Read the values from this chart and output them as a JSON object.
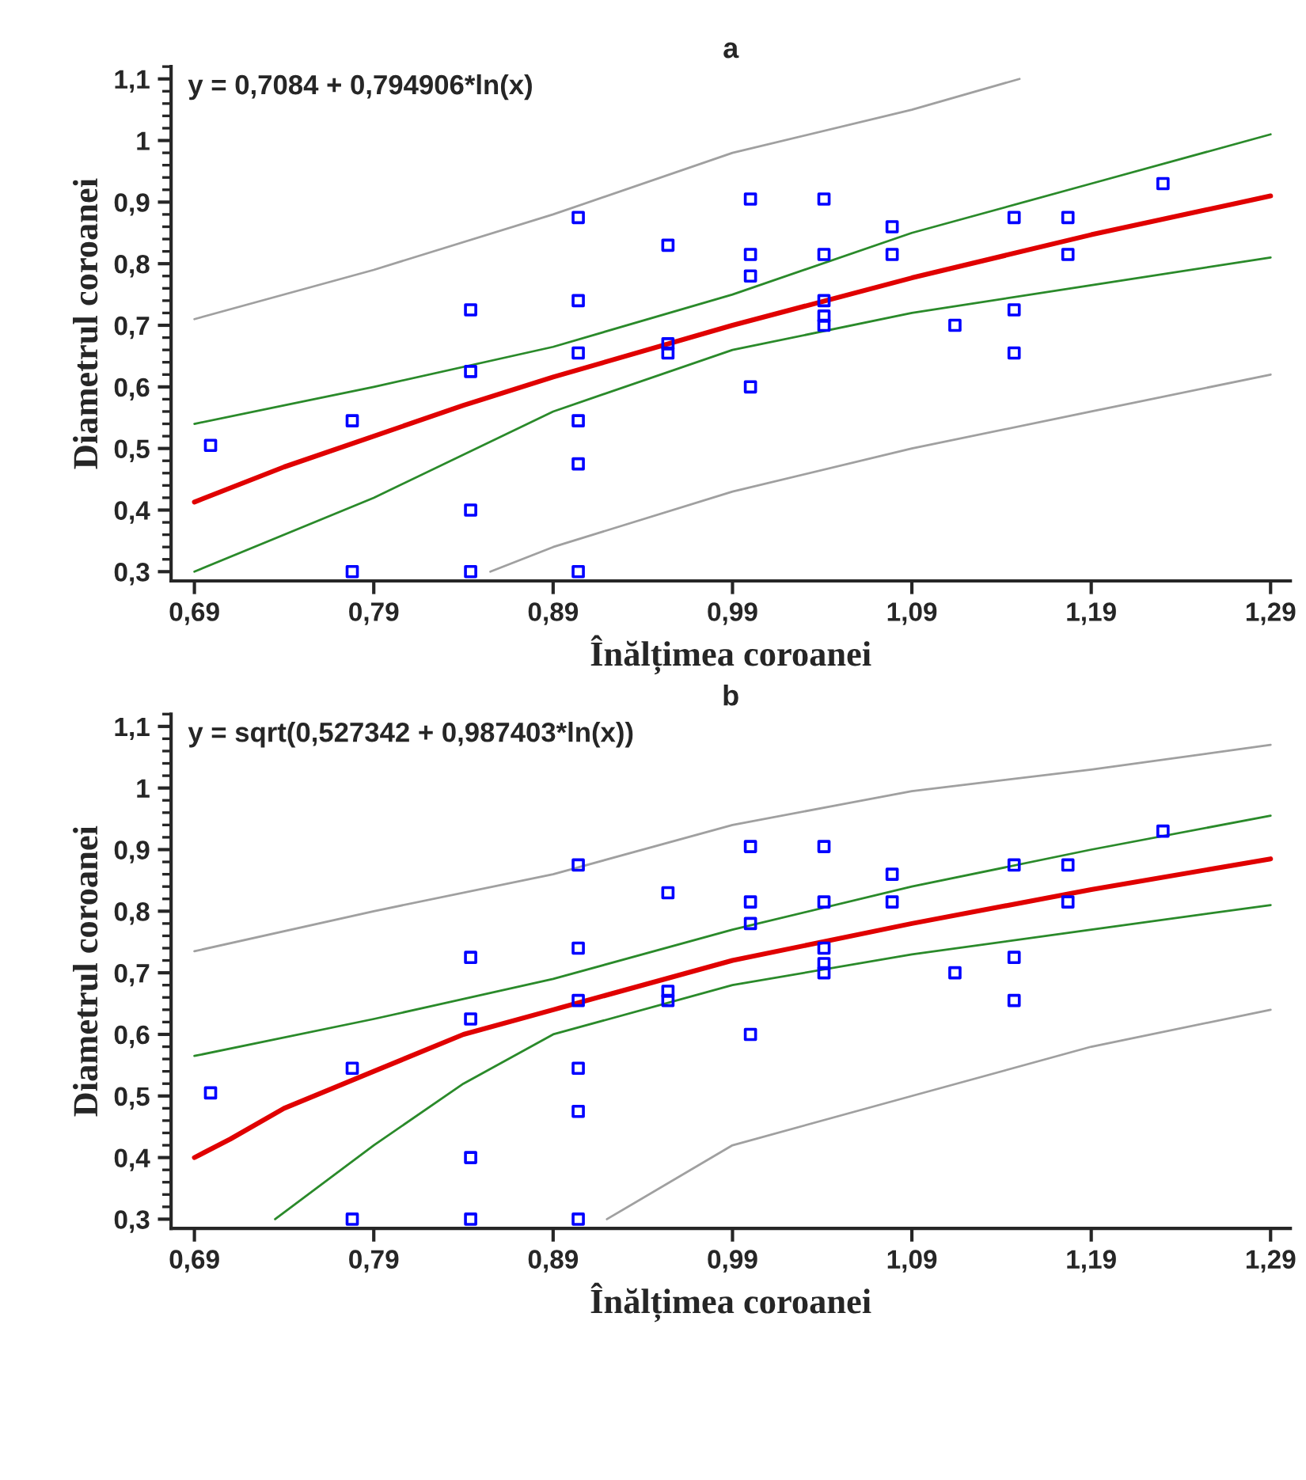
{
  "chart_data": [
    {
      "type": "scatter",
      "title": "a",
      "xlabel": "Înălțimea coroanei",
      "ylabel": "Diametrul coroanei",
      "annotations": [
        "y = 0,7084 + 0,794906*ln(x)"
      ],
      "xlim": [
        0.677,
        1.301
      ],
      "ylim": [
        0.285,
        1.12
      ],
      "xticks": [
        {
          "value": 0.69,
          "label": "0,69"
        },
        {
          "value": 0.79,
          "label": "0,79"
        },
        {
          "value": 0.89,
          "label": "0,89"
        },
        {
          "value": 0.99,
          "label": "0,99"
        },
        {
          "value": 1.09,
          "label": "1,09"
        },
        {
          "value": 1.19,
          "label": "1,19"
        },
        {
          "value": 1.29,
          "label": "1,29"
        }
      ],
      "yticks": [
        {
          "value": 0.3,
          "label": "0,3"
        },
        {
          "value": 0.4,
          "label": "0,4"
        },
        {
          "value": 0.5,
          "label": "0,5"
        },
        {
          "value": 0.6,
          "label": "0,6"
        },
        {
          "value": 0.7,
          "label": "0,7"
        },
        {
          "value": 0.8,
          "label": "0,8"
        },
        {
          "value": 0.9,
          "label": "0,9"
        },
        1,
        {
          "value": 1.1,
          "label": "1,1"
        }
      ],
      "grid": false,
      "legend": false,
      "series": [
        {
          "type": "line",
          "color": "#a0a0a0",
          "x": [
            0.69,
            0.79,
            0.89,
            0.99,
            1.09,
            1.15
          ],
          "values": [
            0.71,
            0.79,
            0.88,
            0.98,
            1.05,
            1.1
          ]
        },
        {
          "type": "line",
          "color": "#a0a0a0",
          "x": [
            0.855,
            0.89,
            0.99,
            1.09,
            1.19,
            1.29
          ],
          "values": [
            0.3,
            0.34,
            0.43,
            0.5,
            0.56,
            0.62
          ]
        },
        {
          "type": "line",
          "color": "#2a8a2a",
          "x": [
            0.69,
            0.79,
            0.89,
            0.99,
            1.09,
            1.19,
            1.29
          ],
          "values": [
            0.54,
            0.6,
            0.665,
            0.75,
            0.85,
            0.93,
            1.01
          ]
        },
        {
          "type": "line",
          "color": "#2a8a2a",
          "x": [
            0.69,
            0.79,
            0.89,
            0.99,
            1.09,
            1.19,
            1.29
          ],
          "values": [
            0.3,
            0.42,
            0.56,
            0.66,
            0.72,
            0.765,
            0.81
          ]
        },
        {
          "type": "line",
          "color": "#e00000",
          "x": [
            0.69,
            0.74,
            0.79,
            0.84,
            0.89,
            0.99,
            1.09,
            1.19,
            1.29
          ],
          "values": [
            0.413,
            0.47,
            0.52,
            0.57,
            0.616,
            0.7,
            0.777,
            0.847,
            0.91
          ]
        },
        {
          "color": "#0000ff",
          "marker": "square",
          "x": [
            0.699,
            0.778,
            0.778,
            0.844,
            0.844,
            0.844,
            0.844,
            0.904,
            0.904,
            0.904,
            0.904,
            0.904,
            0.904,
            0.954,
            0.954,
            0.954,
            1.0,
            1.0,
            1.0,
            1.0,
            1.041,
            1.041,
            1.041,
            1.041,
            1.041,
            1.079,
            1.079,
            1.114,
            1.147,
            1.147,
            1.147,
            1.177,
            1.177,
            1.23
          ],
          "values": [
            0.505,
            0.545,
            0.3,
            0.725,
            0.625,
            0.4,
            0.3,
            0.875,
            0.74,
            0.655,
            0.545,
            0.475,
            0.3,
            0.83,
            0.67,
            0.655,
            0.905,
            0.815,
            0.78,
            0.6,
            0.905,
            0.815,
            0.74,
            0.715,
            0.7,
            0.86,
            0.815,
            0.7,
            0.875,
            0.725,
            0.655,
            0.875,
            0.815,
            0.93
          ]
        }
      ]
    },
    {
      "type": "scatter",
      "title": "b",
      "xlabel": "Înălțimea coroanei",
      "ylabel": "Diametrul coroanei",
      "annotations": [
        "y = sqrt(0,527342 + 0,987403*ln(x))"
      ],
      "xlim": [
        0.677,
        1.301
      ],
      "ylim": [
        0.285,
        1.12
      ],
      "xticks": [
        {
          "value": 0.69,
          "label": "0,69"
        },
        {
          "value": 0.79,
          "label": "0,79"
        },
        {
          "value": 0.89,
          "label": "0,89"
        },
        {
          "value": 0.99,
          "label": "0,99"
        },
        {
          "value": 1.09,
          "label": "1,09"
        },
        {
          "value": 1.19,
          "label": "1,19"
        },
        {
          "value": 1.29,
          "label": "1,29"
        }
      ],
      "yticks": [
        {
          "value": 0.3,
          "label": "0,3"
        },
        {
          "value": 0.4,
          "label": "0,4"
        },
        {
          "value": 0.5,
          "label": "0,5"
        },
        {
          "value": 0.6,
          "label": "0,6"
        },
        {
          "value": 0.7,
          "label": "0,7"
        },
        {
          "value": 0.8,
          "label": "0,8"
        },
        {
          "value": 0.9,
          "label": "0,9"
        },
        1,
        {
          "value": 1.1,
          "label": "1,1"
        }
      ],
      "grid": false,
      "legend": false,
      "series": [
        {
          "type": "line",
          "color": "#a0a0a0",
          "x": [
            0.69,
            0.79,
            0.89,
            0.99,
            1.09,
            1.19,
            1.29
          ],
          "values": [
            0.735,
            0.8,
            0.86,
            0.94,
            0.995,
            1.03,
            1.07
          ]
        },
        {
          "type": "line",
          "color": "#a0a0a0",
          "x": [
            0.92,
            0.99,
            1.09,
            1.19,
            1.29
          ],
          "values": [
            0.3,
            0.42,
            0.5,
            0.58,
            0.64
          ]
        },
        {
          "type": "line",
          "color": "#2a8a2a",
          "x": [
            0.69,
            0.79,
            0.89,
            0.99,
            1.09,
            1.19,
            1.29
          ],
          "values": [
            0.565,
            0.625,
            0.69,
            0.77,
            0.84,
            0.9,
            0.955
          ]
        },
        {
          "type": "line",
          "color": "#2a8a2a",
          "x": [
            0.735,
            0.79,
            0.84,
            0.89,
            0.99,
            1.09,
            1.19,
            1.29
          ],
          "values": [
            0.3,
            0.42,
            0.52,
            0.6,
            0.68,
            0.73,
            0.77,
            0.81
          ]
        },
        {
          "type": "line",
          "color": "#e00000",
          "x": [
            0.69,
            0.71,
            0.74,
            0.79,
            0.84,
            0.89,
            0.99,
            1.09,
            1.19,
            1.29
          ],
          "values": [
            0.4,
            0.43,
            0.48,
            0.54,
            0.6,
            0.64,
            0.72,
            0.78,
            0.835,
            0.885
          ]
        },
        {
          "color": "#0000ff",
          "marker": "square",
          "x": [
            0.699,
            0.778,
            0.778,
            0.844,
            0.844,
            0.844,
            0.844,
            0.904,
            0.904,
            0.904,
            0.904,
            0.904,
            0.904,
            0.954,
            0.954,
            0.954,
            1.0,
            1.0,
            1.0,
            1.0,
            1.041,
            1.041,
            1.041,
            1.041,
            1.041,
            1.079,
            1.079,
            1.114,
            1.147,
            1.147,
            1.147,
            1.177,
            1.177,
            1.23
          ],
          "values": [
            0.505,
            0.545,
            0.3,
            0.725,
            0.625,
            0.4,
            0.3,
            0.875,
            0.74,
            0.655,
            0.545,
            0.475,
            0.3,
            0.83,
            0.67,
            0.655,
            0.905,
            0.815,
            0.78,
            0.6,
            0.905,
            0.815,
            0.74,
            0.715,
            0.7,
            0.86,
            0.815,
            0.7,
            0.875,
            0.725,
            0.655,
            0.875,
            0.815,
            0.93
          ]
        }
      ]
    }
  ]
}
